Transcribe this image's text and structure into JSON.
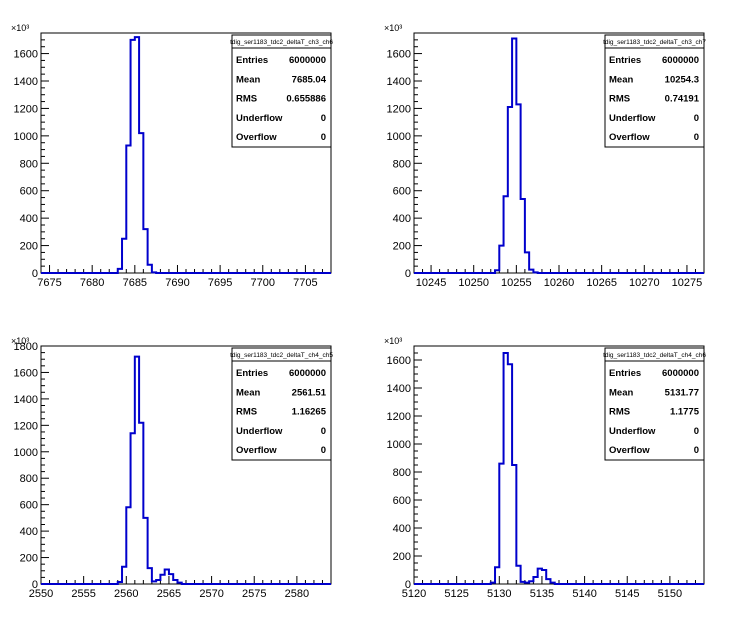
{
  "chart_data": [
    {
      "type": "histogram",
      "name": "tdig_ser1183_tdc2_deltaT_ch3_ch6",
      "exponent_label": "×10³",
      "xlim": [
        7674,
        7708
      ],
      "ylim": [
        0,
        1750
      ],
      "bin_width": 0.5,
      "x_ticks": [
        7675,
        7680,
        7685,
        7690,
        7695,
        7700,
        7705
      ],
      "y_ticks": [
        0,
        200,
        400,
        600,
        800,
        1000,
        1200,
        1400,
        1600
      ],
      "bins": [
        [
          7683.0,
          30
        ],
        [
          7683.5,
          250
        ],
        [
          7684.0,
          930
        ],
        [
          7684.5,
          1700
        ],
        [
          7685.0,
          1720
        ],
        [
          7685.5,
          1020
        ],
        [
          7686.0,
          320
        ],
        [
          7686.5,
          60
        ],
        [
          7687.0,
          5
        ]
      ],
      "stats": [
        {
          "label": "Entries",
          "value": "6000000"
        },
        {
          "label": "Mean",
          "value": "7685.04"
        },
        {
          "label": "RMS",
          "value": "0.655886"
        },
        {
          "label": "Underflow",
          "value": "0"
        },
        {
          "label": "Overflow",
          "value": "0"
        }
      ]
    },
    {
      "type": "histogram",
      "name": "tdig_ser1183_tdc2_deltaT_ch3_ch7",
      "exponent_label": "×10³",
      "xlim": [
        10243,
        10277
      ],
      "ylim": [
        0,
        1750
      ],
      "bin_width": 0.5,
      "x_ticks": [
        10245,
        10250,
        10255,
        10260,
        10265,
        10270,
        10275
      ],
      "y_ticks": [
        0,
        200,
        400,
        600,
        800,
        1000,
        1200,
        1400,
        1600
      ],
      "bins": [
        [
          10252.5,
          20
        ],
        [
          10253.0,
          200
        ],
        [
          10253.5,
          560
        ],
        [
          10254.0,
          1210
        ],
        [
          10254.5,
          1710
        ],
        [
          10255.0,
          1230
        ],
        [
          10255.5,
          540
        ],
        [
          10256.0,
          150
        ],
        [
          10256.5,
          25
        ],
        [
          10257.0,
          5
        ]
      ],
      "stats": [
        {
          "label": "Entries",
          "value": "6000000"
        },
        {
          "label": "Mean",
          "value": "10254.3"
        },
        {
          "label": "RMS",
          "value": "0.74191"
        },
        {
          "label": "Underflow",
          "value": "0"
        },
        {
          "label": "Overflow",
          "value": "0"
        }
      ]
    },
    {
      "type": "histogram",
      "name": "tdig_ser1183_tdc2_deltaT_ch4_ch5",
      "exponent_label": "×10³",
      "xlim": [
        2550,
        2584
      ],
      "ylim": [
        0,
        1800
      ],
      "bin_width": 0.5,
      "x_ticks": [
        2550,
        2555,
        2560,
        2565,
        2570,
        2575,
        2580
      ],
      "y_ticks": [
        0,
        200,
        400,
        600,
        800,
        1000,
        1200,
        1400,
        1600,
        1800
      ],
      "bins": [
        [
          2559.0,
          15
        ],
        [
          2559.5,
          130
        ],
        [
          2560.0,
          580
        ],
        [
          2560.5,
          1140
        ],
        [
          2561.0,
          1720
        ],
        [
          2561.5,
          1220
        ],
        [
          2562.0,
          500
        ],
        [
          2562.5,
          120
        ],
        [
          2563.0,
          20
        ],
        [
          2563.5,
          30
        ],
        [
          2564.0,
          70
        ],
        [
          2564.5,
          110
        ],
        [
          2565.0,
          75
        ],
        [
          2565.5,
          30
        ],
        [
          2566.0,
          10
        ]
      ],
      "stats": [
        {
          "label": "Entries",
          "value": "6000000"
        },
        {
          "label": "Mean",
          "value": "2561.51"
        },
        {
          "label": "RMS",
          "value": "1.16265"
        },
        {
          "label": "Underflow",
          "value": "0"
        },
        {
          "label": "Overflow",
          "value": "0"
        }
      ]
    },
    {
      "type": "histogram",
      "name": "tdig_ser1183_tdc2_deltaT_ch4_ch6",
      "exponent_label": "×10³",
      "xlim": [
        5120,
        5154
      ],
      "ylim": [
        0,
        1700
      ],
      "bin_width": 0.5,
      "x_ticks": [
        5120,
        5125,
        5130,
        5135,
        5140,
        5145,
        5150
      ],
      "y_ticks": [
        0,
        200,
        400,
        600,
        800,
        1000,
        1200,
        1400,
        1600
      ],
      "bins": [
        [
          5129.0,
          10
        ],
        [
          5129.5,
          120
        ],
        [
          5130.0,
          860
        ],
        [
          5130.5,
          1650
        ],
        [
          5131.0,
          1570
        ],
        [
          5131.5,
          850
        ],
        [
          5132.0,
          130
        ],
        [
          5132.5,
          15
        ],
        [
          5133.0,
          10
        ],
        [
          5133.5,
          20
        ],
        [
          5134.0,
          50
        ],
        [
          5134.5,
          110
        ],
        [
          5135.0,
          100
        ],
        [
          5135.5,
          35
        ],
        [
          5136.0,
          10
        ]
      ],
      "stats": [
        {
          "label": "Entries",
          "value": "6000000"
        },
        {
          "label": "Mean",
          "value": "5131.77"
        },
        {
          "label": "RMS",
          "value": "1.1775"
        },
        {
          "label": "Underflow",
          "value": "0"
        },
        {
          "label": "Overflow",
          "value": "0"
        }
      ]
    }
  ],
  "colors": {
    "histogram_line": "#0000cc",
    "axis": "#000000",
    "background": "#ffffff"
  }
}
